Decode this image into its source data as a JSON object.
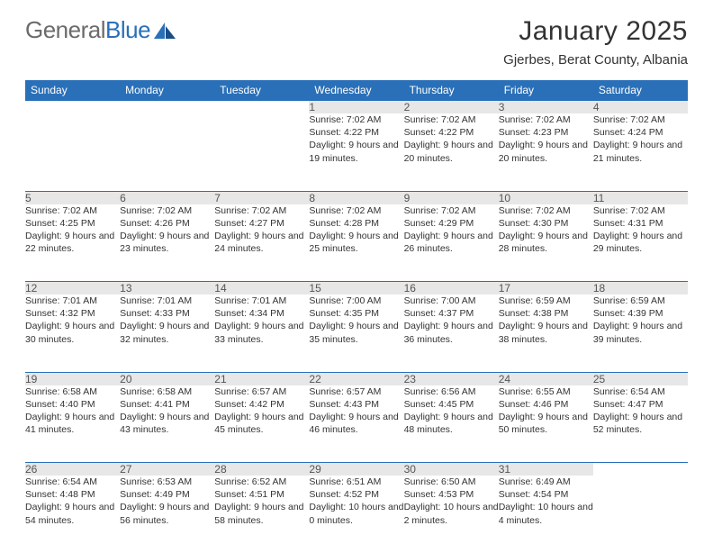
{
  "brand": {
    "part1": "General",
    "part2": "Blue"
  },
  "header": {
    "title": "January 2025",
    "location": "Gjerbes, Berat County, Albania"
  },
  "colors": {
    "accent": "#2a70b8",
    "daynum_bg": "#e7e7e7",
    "text": "#333333",
    "logo_gray": "#6b6b6b"
  },
  "weekdays": [
    "Sunday",
    "Monday",
    "Tuesday",
    "Wednesday",
    "Thursday",
    "Friday",
    "Saturday"
  ],
  "weeks": [
    [
      null,
      null,
      null,
      {
        "n": "1",
        "sr": "7:02 AM",
        "ss": "4:22 PM",
        "dl": "9 hours and 19 minutes."
      },
      {
        "n": "2",
        "sr": "7:02 AM",
        "ss": "4:22 PM",
        "dl": "9 hours and 20 minutes."
      },
      {
        "n": "3",
        "sr": "7:02 AM",
        "ss": "4:23 PM",
        "dl": "9 hours and 20 minutes."
      },
      {
        "n": "4",
        "sr": "7:02 AM",
        "ss": "4:24 PM",
        "dl": "9 hours and 21 minutes."
      }
    ],
    [
      {
        "n": "5",
        "sr": "7:02 AM",
        "ss": "4:25 PM",
        "dl": "9 hours and 22 minutes."
      },
      {
        "n": "6",
        "sr": "7:02 AM",
        "ss": "4:26 PM",
        "dl": "9 hours and 23 minutes."
      },
      {
        "n": "7",
        "sr": "7:02 AM",
        "ss": "4:27 PM",
        "dl": "9 hours and 24 minutes."
      },
      {
        "n": "8",
        "sr": "7:02 AM",
        "ss": "4:28 PM",
        "dl": "9 hours and 25 minutes."
      },
      {
        "n": "9",
        "sr": "7:02 AM",
        "ss": "4:29 PM",
        "dl": "9 hours and 26 minutes."
      },
      {
        "n": "10",
        "sr": "7:02 AM",
        "ss": "4:30 PM",
        "dl": "9 hours and 28 minutes."
      },
      {
        "n": "11",
        "sr": "7:02 AM",
        "ss": "4:31 PM",
        "dl": "9 hours and 29 minutes."
      }
    ],
    [
      {
        "n": "12",
        "sr": "7:01 AM",
        "ss": "4:32 PM",
        "dl": "9 hours and 30 minutes."
      },
      {
        "n": "13",
        "sr": "7:01 AM",
        "ss": "4:33 PM",
        "dl": "9 hours and 32 minutes."
      },
      {
        "n": "14",
        "sr": "7:01 AM",
        "ss": "4:34 PM",
        "dl": "9 hours and 33 minutes."
      },
      {
        "n": "15",
        "sr": "7:00 AM",
        "ss": "4:35 PM",
        "dl": "9 hours and 35 minutes."
      },
      {
        "n": "16",
        "sr": "7:00 AM",
        "ss": "4:37 PM",
        "dl": "9 hours and 36 minutes."
      },
      {
        "n": "17",
        "sr": "6:59 AM",
        "ss": "4:38 PM",
        "dl": "9 hours and 38 minutes."
      },
      {
        "n": "18",
        "sr": "6:59 AM",
        "ss": "4:39 PM",
        "dl": "9 hours and 39 minutes."
      }
    ],
    [
      {
        "n": "19",
        "sr": "6:58 AM",
        "ss": "4:40 PM",
        "dl": "9 hours and 41 minutes."
      },
      {
        "n": "20",
        "sr": "6:58 AM",
        "ss": "4:41 PM",
        "dl": "9 hours and 43 minutes."
      },
      {
        "n": "21",
        "sr": "6:57 AM",
        "ss": "4:42 PM",
        "dl": "9 hours and 45 minutes."
      },
      {
        "n": "22",
        "sr": "6:57 AM",
        "ss": "4:43 PM",
        "dl": "9 hours and 46 minutes."
      },
      {
        "n": "23",
        "sr": "6:56 AM",
        "ss": "4:45 PM",
        "dl": "9 hours and 48 minutes."
      },
      {
        "n": "24",
        "sr": "6:55 AM",
        "ss": "4:46 PM",
        "dl": "9 hours and 50 minutes."
      },
      {
        "n": "25",
        "sr": "6:54 AM",
        "ss": "4:47 PM",
        "dl": "9 hours and 52 minutes."
      }
    ],
    [
      {
        "n": "26",
        "sr": "6:54 AM",
        "ss": "4:48 PM",
        "dl": "9 hours and 54 minutes."
      },
      {
        "n": "27",
        "sr": "6:53 AM",
        "ss": "4:49 PM",
        "dl": "9 hours and 56 minutes."
      },
      {
        "n": "28",
        "sr": "6:52 AM",
        "ss": "4:51 PM",
        "dl": "9 hours and 58 minutes."
      },
      {
        "n": "29",
        "sr": "6:51 AM",
        "ss": "4:52 PM",
        "dl": "10 hours and 0 minutes."
      },
      {
        "n": "30",
        "sr": "6:50 AM",
        "ss": "4:53 PM",
        "dl": "10 hours and 2 minutes."
      },
      {
        "n": "31",
        "sr": "6:49 AM",
        "ss": "4:54 PM",
        "dl": "10 hours and 4 minutes."
      },
      null
    ]
  ],
  "labels": {
    "sunrise": "Sunrise:",
    "sunset": "Sunset:",
    "daylight": "Daylight:"
  }
}
